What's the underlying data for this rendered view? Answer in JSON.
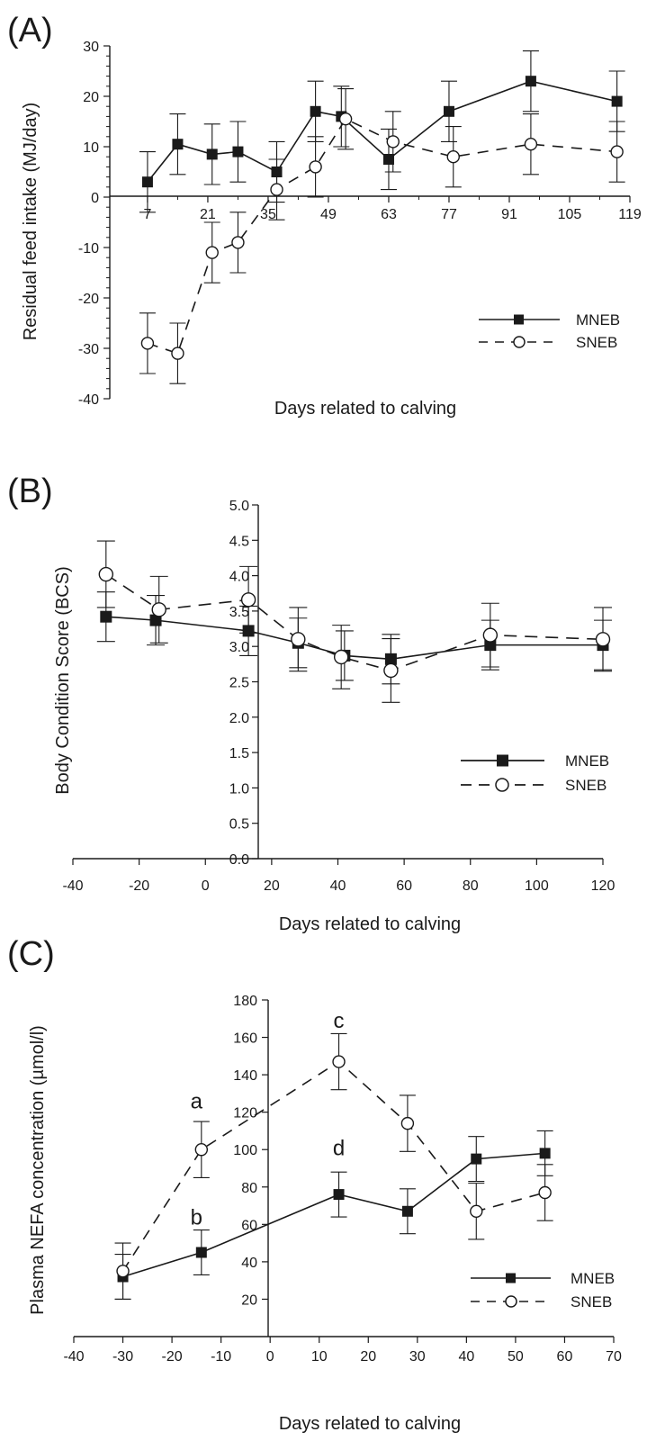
{
  "chart_data": [
    {
      "type": "line",
      "panel_label": "(A)",
      "ylabel": "Residual feed intake (MJ/day)",
      "xlabel": "Days related to calving",
      "ylim": [
        -40,
        30
      ],
      "yticks": [
        -40,
        -30,
        -20,
        -10,
        0,
        10,
        20,
        30
      ],
      "xlim": [
        2,
        119
      ],
      "xticks": [
        7,
        21,
        35,
        49,
        63,
        77,
        91,
        105,
        119
      ],
      "legend_position": "bottom-right",
      "series": [
        {
          "name": "MNEB",
          "style": "solid-square",
          "x": [
            7,
            14,
            22,
            28,
            37,
            46,
            52,
            63,
            77,
            96,
            116
          ],
          "y": [
            3,
            10.5,
            8.5,
            9,
            5,
            17,
            16,
            7.5,
            17,
            23,
            19
          ],
          "err": [
            6,
            6,
            6,
            6,
            6,
            6,
            6,
            6,
            6,
            6,
            6
          ]
        },
        {
          "name": "SNEB",
          "style": "dashed-circle",
          "x": [
            7,
            14,
            22,
            28,
            37,
            46,
            53,
            64,
            78,
            96,
            116
          ],
          "y": [
            -29,
            -31,
            -11,
            -9,
            1.5,
            6,
            15.5,
            11,
            8,
            10.5,
            9
          ],
          "err": [
            6,
            6,
            6,
            6,
            6,
            6,
            6,
            6,
            6,
            6,
            6
          ]
        }
      ]
    },
    {
      "type": "line",
      "panel_label": "(B)",
      "ylabel": "Body Condition Score (BCS)",
      "xlabel": "Days related to calving",
      "ylim": [
        0,
        5
      ],
      "yticks": [
        "0.0",
        "0.5",
        "1.0",
        "1.5",
        "2.0",
        "2.5",
        "3.0",
        "3.5",
        "4.0",
        "4.5",
        "5.0"
      ],
      "xlim": [
        -40,
        120
      ],
      "xticks": [
        -40,
        -20,
        0,
        20,
        40,
        60,
        80,
        100,
        120
      ],
      "legend_position": "bottom-right",
      "series": [
        {
          "name": "MNEB",
          "style": "solid-square",
          "x": [
            -30,
            -15,
            13,
            28,
            42,
            56,
            86,
            120
          ],
          "y": [
            3.42,
            3.37,
            3.22,
            3.05,
            2.87,
            2.82,
            3.02,
            3.02
          ],
          "err": [
            0.35,
            0.35,
            0.35,
            0.35,
            0.35,
            0.35,
            0.35,
            0.35
          ]
        },
        {
          "name": "SNEB",
          "style": "dashed-circle",
          "x": [
            -30,
            -14,
            13,
            28,
            41,
            56,
            86,
            120
          ],
          "y": [
            4.02,
            3.52,
            3.66,
            3.1,
            2.85,
            2.66,
            3.16,
            3.1
          ],
          "err": [
            0.47,
            0.47,
            0.47,
            0.45,
            0.45,
            0.45,
            0.45,
            0.45
          ]
        }
      ]
    },
    {
      "type": "line",
      "panel_label": "(C)",
      "ylabel": "Plasma NEFA concentration (µmol/l)",
      "xlabel": "Days related to calving",
      "ylim": [
        0,
        180
      ],
      "yticks": [
        20,
        40,
        60,
        80,
        100,
        120,
        140,
        160,
        180
      ],
      "xlim": [
        -40,
        70
      ],
      "xticks": [
        -40,
        -30,
        -20,
        -10,
        0,
        10,
        20,
        30,
        40,
        50,
        60,
        70
      ],
      "legend_position": "bottom-right",
      "annotations": [
        {
          "text": "a",
          "x": -15,
          "y": 122
        },
        {
          "text": "b",
          "x": -15,
          "y": 60
        },
        {
          "text": "c",
          "x": 14,
          "y": 165
        },
        {
          "text": "d",
          "x": 14,
          "y": 97
        }
      ],
      "series": [
        {
          "name": "MNEB",
          "style": "solid-square",
          "x": [
            -30,
            -14,
            14,
            28,
            42,
            56
          ],
          "y": [
            32,
            45,
            76,
            67,
            95,
            98
          ],
          "err": [
            12,
            12,
            12,
            12,
            12,
            12
          ]
        },
        {
          "name": "SNEB",
          "style": "dashed-circle",
          "x": [
            -30,
            -14,
            14,
            28,
            42,
            56
          ],
          "y": [
            35,
            100,
            147,
            114,
            67,
            77
          ],
          "err": [
            15,
            15,
            15,
            15,
            15,
            15
          ]
        }
      ]
    }
  ]
}
